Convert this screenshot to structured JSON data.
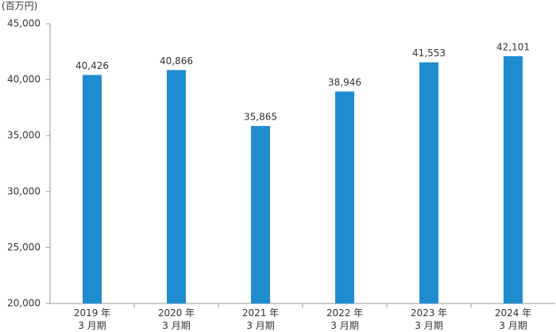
{
  "chart_data": {
    "type": "bar",
    "unit": "(百万円)",
    "categories": [
      "2019 年\n3 月期",
      "2020 年\n3 月期",
      "2021 年\n3 月期",
      "2022 年\n3 月期",
      "2023 年\n3 月期",
      "2024 年\n3 月期"
    ],
    "values": [
      40426,
      40866,
      35865,
      38946,
      41553,
      42101
    ],
    "value_labels": [
      "40,426",
      "40,866",
      "35,865",
      "38,946",
      "41,553",
      "42,101"
    ],
    "color": "#1f8ccf",
    "ylim": [
      20000,
      45000
    ],
    "yticks": [
      {
        "value": 20000,
        "label": "20,000"
      },
      {
        "value": 25000,
        "label": "25,000"
      },
      {
        "value": 30000,
        "label": "30,000"
      },
      {
        "value": 35000,
        "label": "35,000"
      },
      {
        "value": 40000,
        "label": "40,000"
      },
      {
        "value": 45000,
        "label": "45,000"
      }
    ],
    "grid": false
  }
}
